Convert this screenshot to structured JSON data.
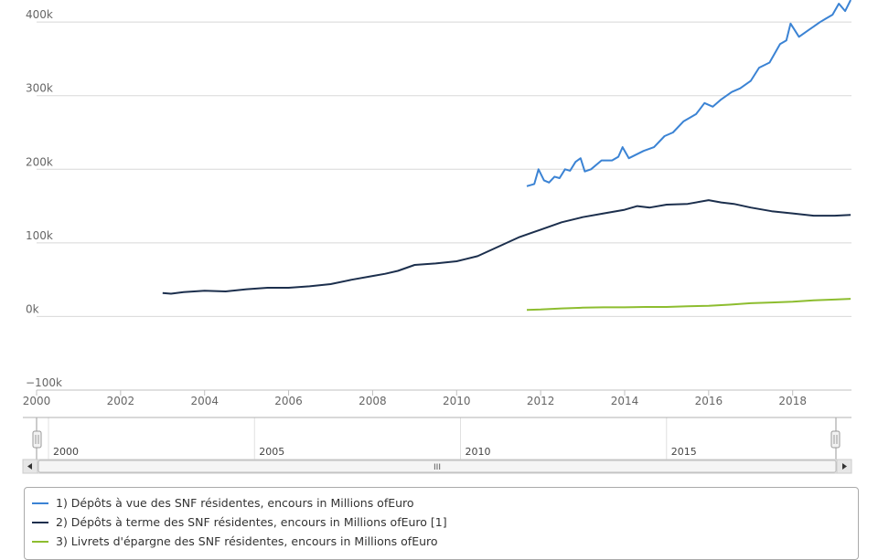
{
  "chart_data": {
    "type": "line",
    "y_ticks": [
      "400k",
      "300k",
      "200k",
      "100k",
      "0k",
      "−100k"
    ],
    "y_tick_values": [
      400000,
      300000,
      200000,
      100000,
      0,
      -100000
    ],
    "ylim": [
      -100000,
      430000
    ],
    "x_ticks": [
      "2000",
      "2002",
      "2004",
      "2006",
      "2008",
      "2010",
      "2012",
      "2014",
      "2016",
      "2018"
    ],
    "xlim": [
      2000,
      2019.4
    ],
    "grid": true,
    "legend_position": "bottom",
    "series": [
      {
        "name": "1) Dépôts à vue des SNF résidentes, encours in Millions ofEuro",
        "color": "#3b83d4",
        "x": [
          2011.67,
          2011.85,
          2011.95,
          2012.08,
          2012.2,
          2012.33,
          2012.45,
          2012.58,
          2012.7,
          2012.83,
          2012.95,
          2013.05,
          2013.2,
          2013.45,
          2013.7,
          2013.85,
          2013.95,
          2014.1,
          2014.45,
          2014.7,
          2014.95,
          2015.15,
          2015.4,
          2015.7,
          2015.9,
          2016.1,
          2016.3,
          2016.55,
          2016.75,
          2017.0,
          2017.2,
          2017.45,
          2017.7,
          2017.85,
          2017.95,
          2018.15,
          2018.4,
          2018.65,
          2018.8,
          2018.95,
          2019.1,
          2019.25,
          2019.38
        ],
        "values": [
          177000,
          180000,
          200000,
          185000,
          182000,
          190000,
          188000,
          200000,
          198000,
          210000,
          215000,
          197000,
          200000,
          212000,
          212000,
          217000,
          230000,
          215000,
          225000,
          230000,
          245000,
          250000,
          265000,
          275000,
          290000,
          285000,
          295000,
          305000,
          310000,
          320000,
          338000,
          345000,
          370000,
          375000,
          398000,
          380000,
          390000,
          400000,
          405000,
          410000,
          425000,
          415000,
          430000
        ]
      },
      {
        "name": "2) Dépôts à terme des SNF résidentes, encours in Millions ofEuro [1]",
        "color": "#1c2f4d",
        "x": [
          2003.0,
          2003.2,
          2003.5,
          2004.0,
          2004.5,
          2005.0,
          2005.5,
          2006.0,
          2006.5,
          2007.0,
          2007.5,
          2008.0,
          2008.3,
          2008.6,
          2009.0,
          2009.5,
          2010.0,
          2010.5,
          2011.0,
          2011.5,
          2012.0,
          2012.5,
          2013.0,
          2013.5,
          2014.0,
          2014.3,
          2014.6,
          2015.0,
          2015.5,
          2016.0,
          2016.3,
          2016.6,
          2017.0,
          2017.5,
          2018.0,
          2018.5,
          2019.0,
          2019.38
        ],
        "values": [
          32000,
          31000,
          33000,
          35000,
          34000,
          37000,
          39000,
          39000,
          41000,
          44000,
          50000,
          55000,
          58000,
          62000,
          70000,
          72000,
          75000,
          82000,
          95000,
          108000,
          118000,
          128000,
          135000,
          140000,
          145000,
          150000,
          148000,
          152000,
          153000,
          158000,
          155000,
          153000,
          148000,
          143000,
          140000,
          137000,
          137000,
          138000
        ]
      },
      {
        "name": "3) Livrets d'épargne des SNF résidentes, encours in Millions ofEuro",
        "color": "#8dbd2f",
        "x": [
          2011.67,
          2012.0,
          2012.5,
          2013.0,
          2013.5,
          2014.0,
          2014.5,
          2015.0,
          2015.5,
          2016.0,
          2016.5,
          2017.0,
          2017.5,
          2018.0,
          2018.5,
          2019.0,
          2019.38
        ],
        "values": [
          9000,
          9500,
          11000,
          12000,
          12500,
          12500,
          13000,
          13000,
          14000,
          14500,
          16000,
          18000,
          19000,
          20000,
          22000,
          23000,
          24000
        ]
      }
    ],
    "navigator": {
      "ticks": [
        "2000",
        "2005",
        "2010",
        "2015"
      ],
      "tick_years": [
        2000,
        2005,
        2010,
        2015
      ],
      "range": [
        2000,
        2019.4
      ],
      "scrollbar_grip": "III"
    }
  }
}
